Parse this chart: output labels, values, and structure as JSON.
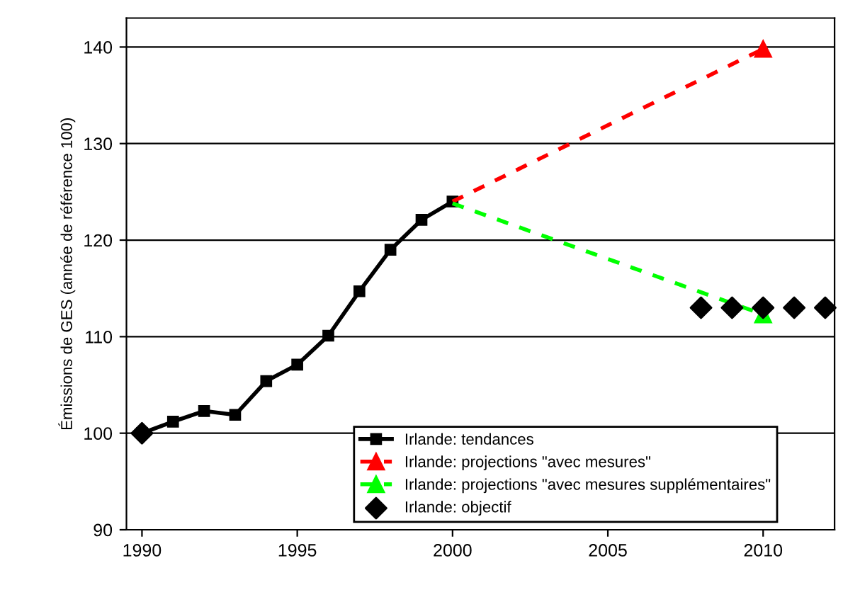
{
  "chart_data": {
    "type": "line",
    "ylabel": "Émissions de GES (année de référence 100)",
    "xlim": [
      1989.5,
      2012.3
    ],
    "ylim": [
      90,
      143
    ],
    "xticks": [
      1990,
      1995,
      2000,
      2005,
      2010
    ],
    "yticks": [
      90,
      100,
      110,
      120,
      130,
      140
    ],
    "grid": "y",
    "legend": "bottom right",
    "series": [
      {
        "name": "Irlande: tendances",
        "color": "#000000",
        "marker": "square",
        "line_style": "solid",
        "x": [
          1990,
          1991,
          1992,
          1993,
          1994,
          1995,
          1996,
          1997,
          1998,
          1999,
          2000
        ],
        "values": [
          100,
          101.2,
          102.3,
          101.9,
          105.4,
          107.1,
          110.1,
          114.7,
          119,
          122.1,
          124
        ]
      },
      {
        "name": "Irlande: projections \"avec mesures\"",
        "color": "#ff0000",
        "marker": "triangle",
        "line_style": "dashed",
        "x": [
          2000,
          2010
        ],
        "values": [
          124,
          139.8
        ]
      },
      {
        "name": "Irlande: projections \"avec mesures supplémentaires\"",
        "color": "#00ff00",
        "marker": "triangle",
        "line_style": "dashed",
        "x": [
          2000,
          2010
        ],
        "values": [
          123.8,
          112.3
        ]
      },
      {
        "name": "Irlande: objectif",
        "type": "scatter",
        "color": "#000000",
        "marker": "diamond",
        "x": [
          1990,
          2008,
          2009,
          2010,
          2011,
          2012
        ],
        "values": [
          100,
          113,
          113,
          113,
          113,
          113
        ]
      }
    ]
  }
}
